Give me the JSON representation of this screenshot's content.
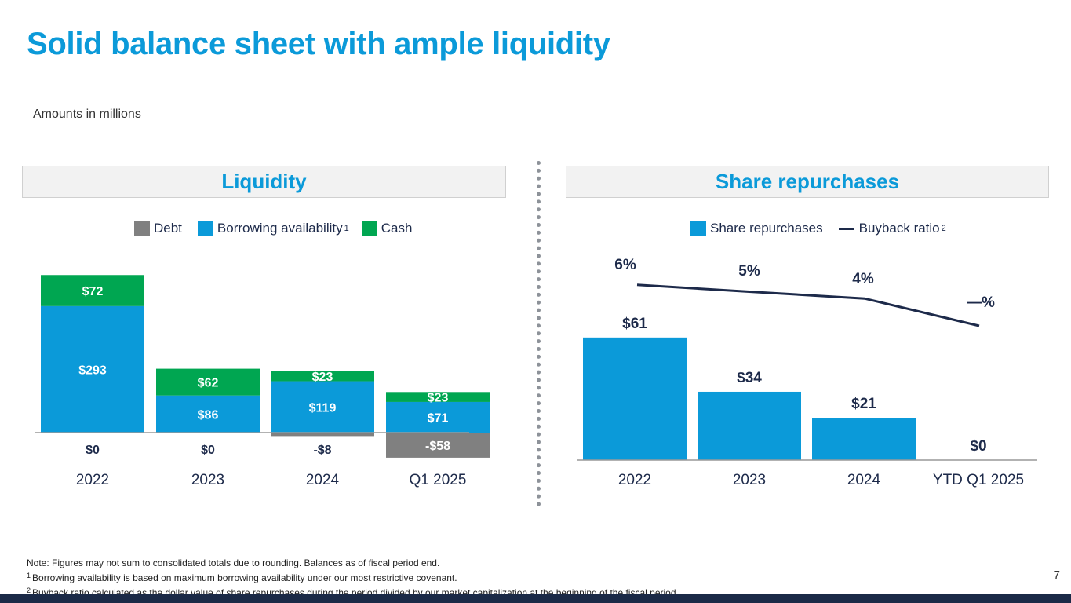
{
  "title": "Solid balance sheet with ample liquidity",
  "subtitle": "Amounts in millions",
  "colors": {
    "accent": "#0b9ad9",
    "debt": "#808080",
    "borrowing": "#0b9ad9",
    "cash": "#00a651",
    "line": "#1d2a4a"
  },
  "liquidity": {
    "header": "Liquidity",
    "legend": {
      "debt": "Debt",
      "borrowing": "Borrowing availability",
      "borrowing_note": "1",
      "cash": "Cash"
    }
  },
  "repurchases": {
    "header": "Share repurchases",
    "legend": {
      "bars": "Share repurchases",
      "line": "Buyback ratio",
      "line_note": "2"
    }
  },
  "chart_data": [
    {
      "type": "bar",
      "stacked": true,
      "categories": [
        "2022",
        "2023",
        "2024",
        "Q1 2025"
      ],
      "series": [
        {
          "name": "Debt",
          "values": [
            0,
            0,
            -8,
            -58
          ],
          "labels": [
            "$0",
            "$0",
            "-$8",
            "-$58"
          ]
        },
        {
          "name": "Borrowing availability",
          "values": [
            293,
            86,
            119,
            71
          ],
          "labels": [
            "$293",
            "$86",
            "$119",
            "$71"
          ]
        },
        {
          "name": "Cash",
          "values": [
            72,
            62,
            23,
            23
          ],
          "labels": [
            "$72",
            "$62",
            "$23",
            "$23"
          ]
        }
      ]
    },
    {
      "type": "bar+line",
      "categories": [
        "2022",
        "2023",
        "2024",
        "YTD Q1 2025"
      ],
      "series": [
        {
          "name": "Share repurchases",
          "values": [
            61,
            34,
            21,
            0
          ],
          "labels": [
            "$61",
            "$34",
            "$21",
            "$0"
          ]
        },
        {
          "name": "Buyback ratio",
          "values": [
            6,
            5,
            4,
            0
          ],
          "labels": [
            "6%",
            "5%",
            "4%",
            "—%"
          ]
        }
      ]
    }
  ],
  "notes": {
    "main": "Note: Figures may not sum to consolidated totals due to rounding. Balances as of fiscal period end.",
    "n1_mark": "1",
    "n1": "Borrowing availability is based on maximum borrowing availability under our most restrictive covenant.",
    "n2_mark": "2",
    "n2": "Buyback ratio calculated as the dollar value of share repurchases during the period divided by our market capitalization at the beginning of the fiscal period."
  },
  "page_number": "7"
}
